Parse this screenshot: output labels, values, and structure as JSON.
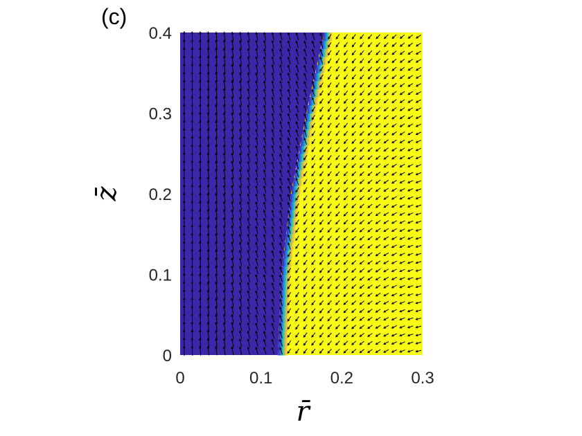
{
  "panel_label": "(c)",
  "chart_data": {
    "type": "heatmap",
    "title": "",
    "xlabel": "r̄",
    "ylabel": "z̄",
    "xlim": [
      0,
      0.3
    ],
    "ylim": [
      0,
      0.4
    ],
    "x_ticks": [
      {
        "value": 0,
        "label": "0"
      },
      {
        "value": 0.1,
        "label": "0.1"
      },
      {
        "value": 0.2,
        "label": "0.2"
      },
      {
        "value": 0.3,
        "label": "0.3"
      }
    ],
    "y_ticks": [
      {
        "value": 0,
        "label": "0"
      },
      {
        "value": 0.1,
        "label": "0.1"
      },
      {
        "value": 0.2,
        "label": "0.2"
      },
      {
        "value": 0.3,
        "label": "0.3"
      },
      {
        "value": 0.4,
        "label": "0.4"
      }
    ],
    "grid": false,
    "colormap": [
      "#3e26a8",
      "#2f6fe8",
      "#13b4d0",
      "#4cc98a",
      "#c6c236",
      "#f9c23a",
      "#f9fb15"
    ],
    "interface": {
      "description_points_r_at_z": [
        [
          0,
          0.127
        ],
        [
          0.1,
          0.131
        ],
        [
          0.2,
          0.143
        ],
        [
          0.3,
          0.162
        ],
        [
          0.4,
          0.184
        ]
      ],
      "inner_value_color": "#3e26a8",
      "outer_value_color": "#f9fb15"
    },
    "quiver": {
      "color": "#000000",
      "nx": 30,
      "nz": 40
    }
  }
}
